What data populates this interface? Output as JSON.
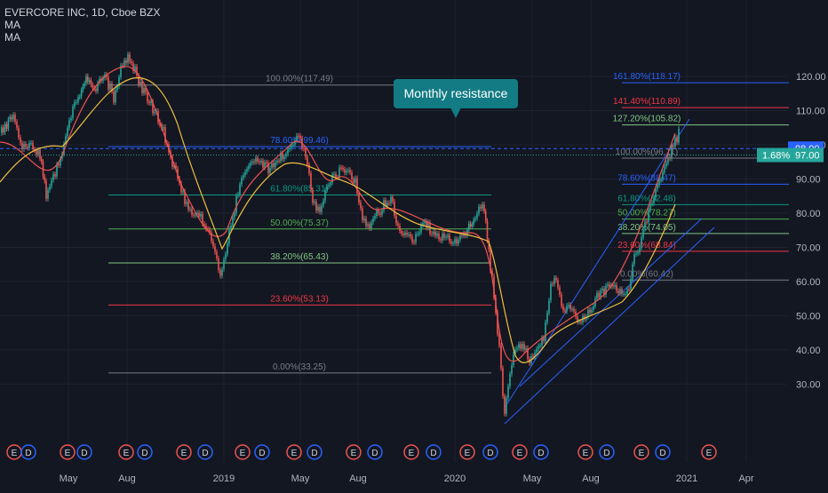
{
  "header": {
    "title": "EVERCORE INC, 1D, Cboe BZX",
    "indicators": [
      "MA",
      "MA"
    ]
  },
  "annotation": {
    "text": "Monthly resistance"
  },
  "price_axis": {
    "ticks": [
      "120.00",
      "110.00",
      "100.00",
      "90.00",
      "80.00",
      "70.00",
      "60.00",
      "50.00",
      "40.00",
      "30.00"
    ],
    "markers": [
      {
        "label": "98.90",
        "color": "#2962ff"
      },
      {
        "label": "97.00",
        "color": "#26a69a",
        "change": "1.68%"
      }
    ]
  },
  "time_axis": {
    "labels": [
      "May",
      "Aug",
      "2019",
      "May",
      "Aug",
      "2020",
      "May",
      "Aug",
      "2021",
      "Apr"
    ]
  },
  "fib_main": [
    {
      "label": "100.00%(117.49)",
      "color": "#787b86"
    },
    {
      "label": "78.60%(99.46)",
      "color": "#2962ff"
    },
    {
      "label": "61.80%(85.31)",
      "color": "#089981"
    },
    {
      "label": "50.00%(75.37)",
      "color": "#4caf50"
    },
    {
      "label": "38.20%(65.43)",
      "color": "#81c784"
    },
    {
      "label": "23.60%(53.13)",
      "color": "#f23645"
    },
    {
      "label": "0.00%(33.25)",
      "color": "#787b86"
    }
  ],
  "fib_recent": [
    {
      "label": "161.80%(118.17)",
      "color": "#2962ff"
    },
    {
      "label": "141.40%(110.89)",
      "color": "#f23645"
    },
    {
      "label": "127.20%(105.82)",
      "color": "#81c784"
    },
    {
      "label": "100.00%(96.11)",
      "color": "#787b86"
    },
    {
      "label": "78.60%(88.47)",
      "color": "#2962ff"
    },
    {
      "label": "61.80%(82.48)",
      "color": "#089981"
    },
    {
      "label": "50.00%(78.27)",
      "color": "#4caf50"
    },
    {
      "label": "38.20%(74.05)",
      "color": "#81c784"
    },
    {
      "label": "23.60%(68.84)",
      "color": "#f23645"
    },
    {
      "label": "0.00%(60.42)",
      "color": "#787b86"
    }
  ],
  "events": [
    "E",
    "D",
    "E",
    "D",
    "E",
    "D",
    "E",
    "D",
    "E",
    "D",
    "E",
    "D",
    "E",
    "D",
    "E",
    "D",
    "E",
    "D",
    "E",
    "D",
    "E",
    "D",
    "E",
    "D",
    "E",
    "D",
    "E"
  ],
  "colors": {
    "background": "#131722",
    "up": "#26a69a",
    "down": "#ef5350",
    "ma_fast": "#ef5350",
    "ma_slow": "#f0c040",
    "channel": "#2962ff",
    "callout": "#127b84"
  }
}
